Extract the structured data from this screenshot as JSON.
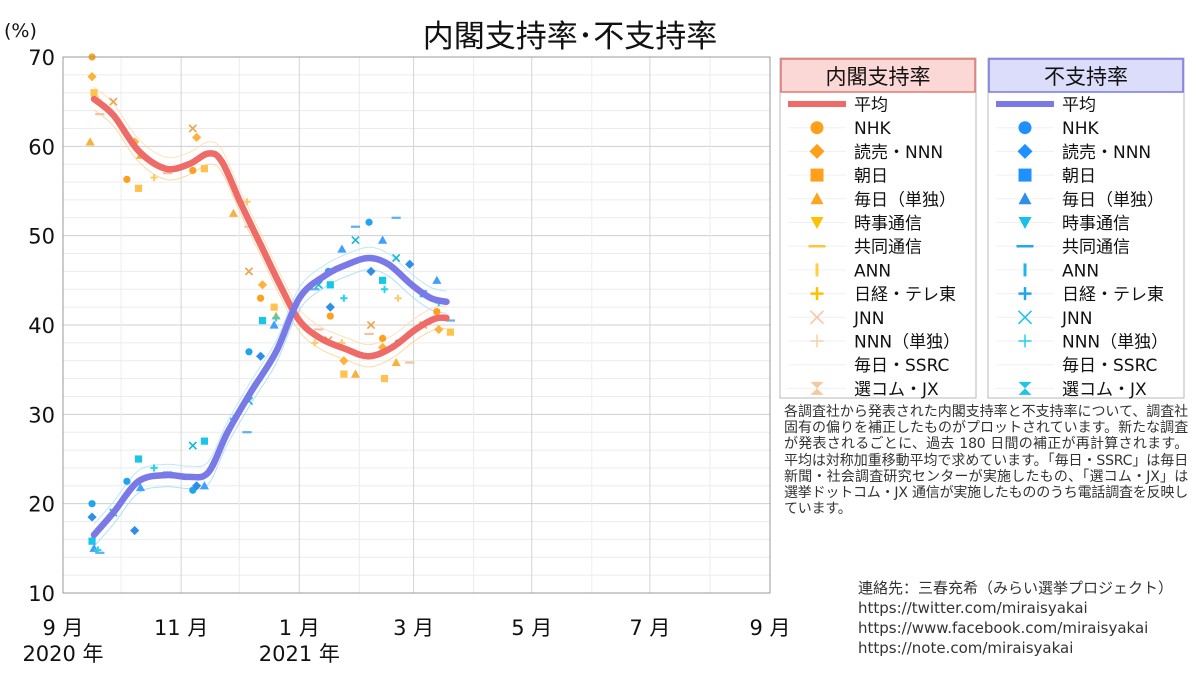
{
  "chart_data": {
    "type": "line",
    "title": "内閣支持率･不支持率",
    "ylabel": "(%)",
    "ylim": [
      10,
      70
    ],
    "yticks": [
      10,
      20,
      30,
      40,
      50,
      60,
      70
    ],
    "x_axis": "date",
    "xlim": [
      "2020-09-01",
      "2021-09-01"
    ],
    "xticks": [
      {
        "date": "2020-09-01",
        "label": "9 月"
      },
      {
        "date": "2020-11-01",
        "label": "11 月"
      },
      {
        "date": "2021-01-01",
        "label": "1 月"
      },
      {
        "date": "2021-03-01",
        "label": "3 月"
      },
      {
        "date": "2021-05-01",
        "label": "5 月"
      },
      {
        "date": "2021-07-01",
        "label": "7 月"
      },
      {
        "date": "2021-09-01",
        "label": "9 月"
      }
    ],
    "year_labels": [
      {
        "date": "2020-09-01",
        "label": "2020 年"
      },
      {
        "date": "2021-01-01",
        "label": "2021 年"
      }
    ],
    "grid": true,
    "legend_placement": "right",
    "colors": {
      "support_avg": "#ee6b67",
      "disapprove_avg": "#7a79e8",
      "support_points": "#ffa21c",
      "disapprove_points": "#1ea5f0"
    },
    "legend": {
      "support": {
        "header": "内閣支持率",
        "items": [
          "平均",
          "NHK",
          "読売・NNN",
          "朝日",
          "毎日（単独）",
          "時事通信",
          "共同通信",
          "ANN",
          "日経・テレ東",
          "JNN",
          "NNN（単独）",
          "毎日・SSRC",
          "選コム・JX"
        ]
      },
      "disapprove": {
        "header": "不支持率",
        "items": [
          "平均",
          "NHK",
          "読売・NNN",
          "朝日",
          "毎日（単独）",
          "時事通信",
          "共同通信",
          "ANN",
          "日経・テレ東",
          "JNN",
          "NNN（単独）",
          "毎日・SSRC",
          "選コム・JX"
        ]
      }
    },
    "series": [
      {
        "name": "内閣支持率 平均",
        "points": [
          [
            "2020-09-17",
            65.3
          ],
          [
            "2020-09-27",
            63.5
          ],
          [
            "2020-10-10",
            59.5
          ],
          [
            "2020-10-24",
            57.5
          ],
          [
            "2020-11-05",
            58.0
          ],
          [
            "2020-11-15",
            59.2
          ],
          [
            "2020-11-22",
            58.3
          ],
          [
            "2020-12-02",
            53.5
          ],
          [
            "2020-12-12",
            49.0
          ],
          [
            "2020-12-22",
            44.5
          ],
          [
            "2021-01-01",
            40.5
          ],
          [
            "2021-01-12",
            38.5
          ],
          [
            "2021-01-25",
            37.3
          ],
          [
            "2021-02-06",
            36.5
          ],
          [
            "2021-02-18",
            37.5
          ],
          [
            "2021-03-02",
            39.5
          ],
          [
            "2021-03-12",
            40.7
          ],
          [
            "2021-03-18",
            40.8
          ]
        ]
      },
      {
        "name": "不支持率 平均",
        "points": [
          [
            "2020-09-17",
            16.5
          ],
          [
            "2020-09-27",
            19.0
          ],
          [
            "2020-10-10",
            22.5
          ],
          [
            "2020-10-24",
            23.2
          ],
          [
            "2020-11-05",
            23.0
          ],
          [
            "2020-11-15",
            23.5
          ],
          [
            "2020-11-25",
            28.0
          ],
          [
            "2020-12-07",
            32.5
          ],
          [
            "2020-12-20",
            37.0
          ],
          [
            "2021-01-01",
            43.0
          ],
          [
            "2021-01-14",
            45.5
          ],
          [
            "2021-01-26",
            46.8
          ],
          [
            "2021-02-06",
            47.5
          ],
          [
            "2021-02-16",
            46.8
          ],
          [
            "2021-02-28",
            44.5
          ],
          [
            "2021-03-10",
            43.0
          ],
          [
            "2021-03-18",
            42.6
          ]
        ]
      },
      {
        "name": "内閣支持率 調査",
        "points": [
          [
            "2020-09-16",
            70.0
          ],
          [
            "2020-09-16",
            67.8
          ],
          [
            "2020-09-17",
            66.0
          ],
          [
            "2020-09-15",
            60.5
          ],
          [
            "2020-09-19",
            65.2
          ],
          [
            "2020-09-20",
            63.6
          ],
          [
            "2020-09-27",
            65.0
          ],
          [
            "2020-10-04",
            56.3
          ],
          [
            "2020-10-08",
            60.5
          ],
          [
            "2020-10-10",
            55.3
          ],
          [
            "2020-10-11",
            59.0
          ],
          [
            "2020-10-18",
            56.5
          ],
          [
            "2020-10-25",
            57.0
          ],
          [
            "2020-11-07",
            62.0
          ],
          [
            "2020-11-07",
            57.3
          ],
          [
            "2020-11-09",
            61.0
          ],
          [
            "2020-11-13",
            57.5
          ],
          [
            "2020-11-28",
            52.5
          ],
          [
            "2020-12-05",
            53.8
          ],
          [
            "2020-12-06",
            51.0
          ],
          [
            "2020-12-06",
            46.0
          ],
          [
            "2020-12-12",
            43.0
          ],
          [
            "2020-12-13",
            44.5
          ],
          [
            "2020-12-19",
            42.0
          ],
          [
            "2020-12-20",
            41.0
          ],
          [
            "2021-01-09",
            38.0
          ],
          [
            "2021-01-11",
            39.5
          ],
          [
            "2021-01-16",
            38.3
          ],
          [
            "2021-01-17",
            41.0
          ],
          [
            "2021-01-24",
            36.0
          ],
          [
            "2021-01-24",
            34.5
          ],
          [
            "2021-01-30",
            34.5
          ],
          [
            "2021-01-23",
            38.0
          ],
          [
            "2021-02-06",
            39.0
          ],
          [
            "2021-02-07",
            40.0
          ],
          [
            "2021-02-13",
            38.5
          ],
          [
            "2021-02-13",
            37.5
          ],
          [
            "2021-02-14",
            34.0
          ],
          [
            "2021-02-20",
            35.8
          ],
          [
            "2021-02-21",
            43.0
          ],
          [
            "2021-02-27",
            35.8
          ],
          [
            "2021-03-06",
            40.0
          ],
          [
            "2021-03-13",
            41.5
          ],
          [
            "2021-03-14",
            39.5
          ],
          [
            "2021-03-20",
            39.2
          ]
        ]
      },
      {
        "name": "不支持率 調査",
        "points": [
          [
            "2020-09-16",
            20.0
          ],
          [
            "2020-09-16",
            18.5
          ],
          [
            "2020-09-16",
            15.8
          ],
          [
            "2020-09-17",
            15.0
          ],
          [
            "2020-09-19",
            14.8
          ],
          [
            "2020-09-20",
            14.5
          ],
          [
            "2020-09-27",
            19.0
          ],
          [
            "2020-10-04",
            22.5
          ],
          [
            "2020-10-08",
            17.0
          ],
          [
            "2020-10-10",
            25.0
          ],
          [
            "2020-10-11",
            21.8
          ],
          [
            "2020-10-18",
            24.0
          ],
          [
            "2020-10-25",
            23.5
          ],
          [
            "2020-11-07",
            26.5
          ],
          [
            "2020-11-07",
            21.5
          ],
          [
            "2020-11-09",
            22.0
          ],
          [
            "2020-11-13",
            27.0
          ],
          [
            "2020-11-13",
            22.0
          ],
          [
            "2020-11-28",
            29.5
          ],
          [
            "2020-12-05",
            28.0
          ],
          [
            "2020-12-06",
            31.5
          ],
          [
            "2020-12-06",
            37.0
          ],
          [
            "2020-12-12",
            36.5
          ],
          [
            "2020-12-13",
            40.5
          ],
          [
            "2020-12-19",
            40.0
          ],
          [
            "2020-12-20",
            40.8
          ],
          [
            "2021-01-09",
            44.0
          ],
          [
            "2021-01-11",
            44.5
          ],
          [
            "2021-01-16",
            46.0
          ],
          [
            "2021-01-17",
            42.0
          ],
          [
            "2021-01-17",
            44.5
          ],
          [
            "2021-01-23",
            48.5
          ],
          [
            "2021-01-24",
            43.0
          ],
          [
            "2021-01-30",
            51.0
          ],
          [
            "2021-01-30",
            49.5
          ],
          [
            "2021-02-06",
            51.5
          ],
          [
            "2021-02-07",
            46.0
          ],
          [
            "2021-02-13",
            45.0
          ],
          [
            "2021-02-13",
            49.5
          ],
          [
            "2021-02-14",
            44.0
          ],
          [
            "2021-02-20",
            52.0
          ],
          [
            "2021-02-20",
            47.5
          ],
          [
            "2021-02-21",
            38.0
          ],
          [
            "2021-02-27",
            46.8
          ],
          [
            "2021-03-06",
            43.5
          ],
          [
            "2021-03-13",
            45.0
          ],
          [
            "2021-03-14",
            42.5
          ],
          [
            "2021-03-20",
            40.5
          ]
        ]
      }
    ]
  },
  "note": "各調査社から発表された内閣支持率と不支持率について、調査社固有の偏りを補正したものがプロットされています。新たな調査が発表されるごとに、過去 180 日間の補正が再計算されます。平均は対称加重移動平均で求めています。「毎日・SSRC」は毎日新聞・社会調査研究センターが実施したもの、「選コム・JX」は選挙ドットコム・JX 通信が実施したもののうち電話調査を反映しています。",
  "contact": {
    "line1": "連絡先：三春充希（みらい選挙プロジェクト）",
    "line2": "https://twitter.com/miraisyakai",
    "line3": "https://www.facebook.com/miraisyakai",
    "line4": "https://note.com/miraisyakai"
  }
}
